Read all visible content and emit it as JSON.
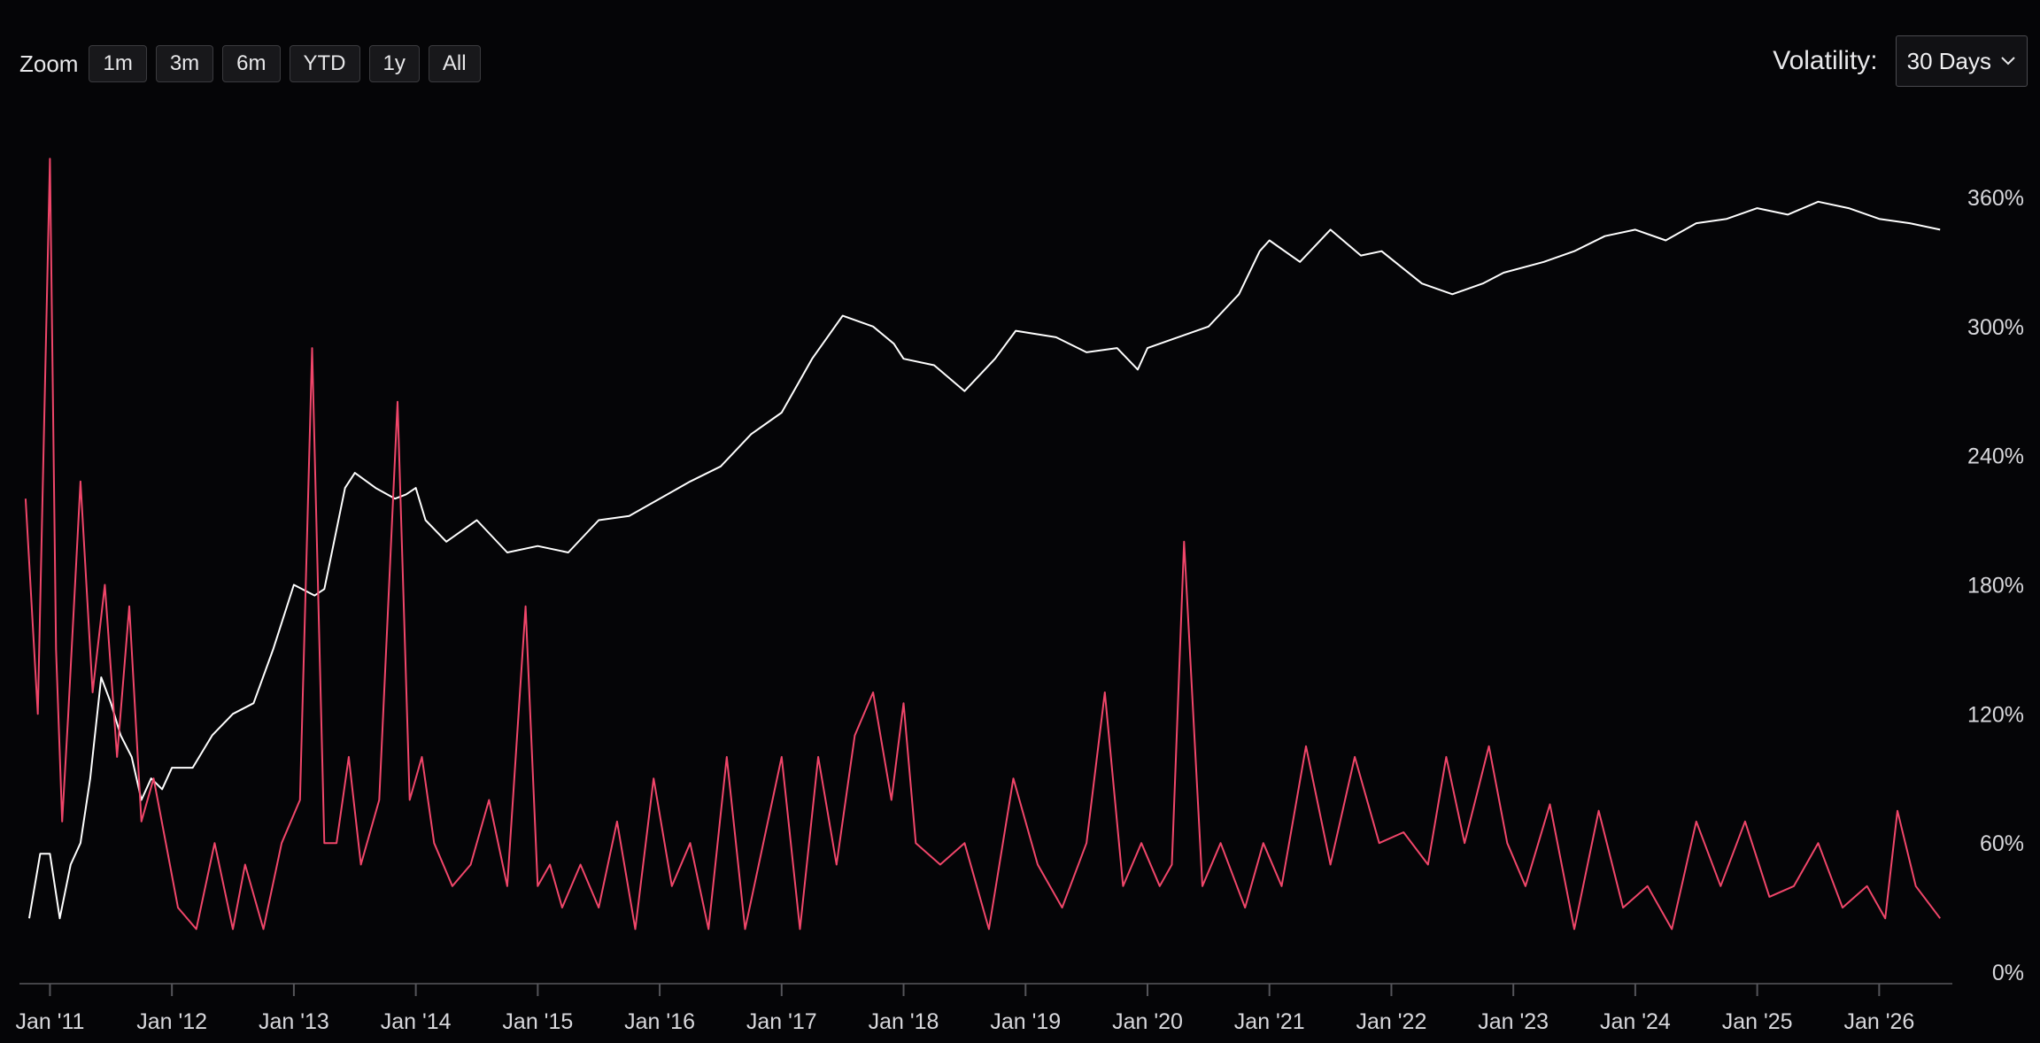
{
  "toolbar": {
    "zoom_label": "Zoom",
    "zoom_buttons": [
      "1m",
      "3m",
      "6m",
      "YTD",
      "1y",
      "All"
    ],
    "volatility_label": "Volatility:",
    "volatility_value": "30 Days",
    "dropdown_icon": "chevron-down-icon"
  },
  "chart_data": {
    "type": "line",
    "xlim": [
      2010.75,
      2026.6
    ],
    "ylim": [
      0,
      390
    ],
    "y_ticks": [
      0,
      60,
      120,
      180,
      240,
      300,
      360
    ],
    "y_tick_labels": [
      "0%",
      "60%",
      "120%",
      "180%",
      "240%",
      "300%",
      "360%"
    ],
    "x_ticks": [
      2011,
      2012,
      2013,
      2014,
      2015,
      2016,
      2017,
      2018,
      2019,
      2020,
      2021,
      2022,
      2023,
      2024,
      2025,
      2026
    ],
    "x_tick_labels": [
      "Jan '11",
      "Jan '12",
      "Jan '13",
      "Jan '14",
      "Jan '15",
      "Jan '16",
      "Jan '17",
      "Jan '18",
      "Jan '19",
      "Jan '20",
      "Jan '21",
      "Jan '22",
      "Jan '23",
      "Jan '24",
      "Jan '25",
      "Jan '26"
    ],
    "grid": false,
    "legend": "none",
    "series": [
      {
        "color": "#ffffff",
        "x": [
          2010.83,
          2010.92,
          2011.0,
          2011.08,
          2011.17,
          2011.25,
          2011.33,
          2011.42,
          2011.5,
          2011.58,
          2011.67,
          2011.75,
          2011.83,
          2011.92,
          2012.0,
          2012.17,
          2012.33,
          2012.5,
          2012.67,
          2012.83,
          2013.0,
          2013.17,
          2013.25,
          2013.33,
          2013.42,
          2013.5,
          2013.67,
          2013.83,
          2013.92,
          2014.0,
          2014.08,
          2014.25,
          2014.5,
          2014.75,
          2015.0,
          2015.25,
          2015.5,
          2015.75,
          2016.0,
          2016.25,
          2016.5,
          2016.75,
          2017.0,
          2017.25,
          2017.5,
          2017.75,
          2017.92,
          2018.0,
          2018.25,
          2018.5,
          2018.75,
          2018.92,
          2019.25,
          2019.5,
          2019.75,
          2019.92,
          2020.0,
          2020.25,
          2020.5,
          2020.75,
          2020.92,
          2021.0,
          2021.25,
          2021.5,
          2021.75,
          2021.92,
          2022.25,
          2022.5,
          2022.75,
          2022.92,
          2023.25,
          2023.5,
          2023.75,
          2024.0,
          2024.25,
          2024.5,
          2024.75,
          2025.0,
          2025.25,
          2025.5,
          2025.75,
          2026.0,
          2026.25,
          2026.5
        ],
        "values": [
          25,
          55,
          55,
          25,
          50,
          60,
          90,
          137,
          125,
          110,
          100,
          80,
          90,
          85,
          95,
          95,
          110,
          120,
          125,
          150,
          180,
          175,
          178,
          200,
          225,
          232,
          225,
          220,
          222,
          225,
          210,
          200,
          210,
          195,
          198,
          195,
          210,
          212,
          220,
          228,
          235,
          250,
          260,
          285,
          305,
          300,
          292,
          285,
          282,
          270,
          285,
          298,
          295,
          288,
          290,
          280,
          290,
          295,
          300,
          315,
          335,
          340,
          330,
          345,
          333,
          335,
          320,
          315,
          320,
          325,
          330,
          335,
          342,
          345,
          340,
          348,
          350,
          355,
          352,
          358,
          355,
          350,
          348,
          345
        ]
      },
      {
        "color": "#f0466a",
        "x": [
          2010.8,
          2010.9,
          2011.0,
          2011.05,
          2011.1,
          2011.15,
          2011.25,
          2011.35,
          2011.45,
          2011.55,
          2011.65,
          2011.75,
          2011.85,
          2011.95,
          2012.05,
          2012.2,
          2012.35,
          2012.5,
          2012.6,
          2012.75,
          2012.9,
          2013.05,
          2013.15,
          2013.25,
          2013.35,
          2013.45,
          2013.55,
          2013.7,
          2013.85,
          2013.95,
          2014.05,
          2014.15,
          2014.3,
          2014.45,
          2014.6,
          2014.75,
          2014.9,
          2015.0,
          2015.1,
          2015.2,
          2015.35,
          2015.5,
          2015.65,
          2015.8,
          2015.95,
          2016.1,
          2016.25,
          2016.4,
          2016.55,
          2016.7,
          2016.85,
          2017.0,
          2017.15,
          2017.3,
          2017.45,
          2017.6,
          2017.75,
          2017.9,
          2018.0,
          2018.1,
          2018.3,
          2018.5,
          2018.7,
          2018.9,
          2019.1,
          2019.3,
          2019.5,
          2019.65,
          2019.8,
          2019.95,
          2020.1,
          2020.2,
          2020.3,
          2020.45,
          2020.6,
          2020.8,
          2020.95,
          2021.1,
          2021.3,
          2021.5,
          2021.7,
          2021.9,
          2022.1,
          2022.3,
          2022.45,
          2022.6,
          2022.8,
          2022.95,
          2023.1,
          2023.3,
          2023.5,
          2023.7,
          2023.9,
          2024.1,
          2024.3,
          2024.5,
          2024.7,
          2024.9,
          2025.1,
          2025.3,
          2025.5,
          2025.7,
          2025.9,
          2026.05,
          2026.15,
          2026.3,
          2026.5
        ],
        "values": [
          220,
          120,
          378,
          150,
          70,
          120,
          228,
          130,
          180,
          100,
          170,
          70,
          90,
          60,
          30,
          20,
          60,
          20,
          50,
          20,
          60,
          80,
          290,
          60,
          60,
          100,
          50,
          80,
          265,
          80,
          100,
          60,
          40,
          50,
          80,
          40,
          170,
          40,
          50,
          30,
          50,
          30,
          70,
          20,
          90,
          40,
          60,
          20,
          100,
          20,
          60,
          100,
          20,
          100,
          50,
          110,
          130,
          80,
          125,
          60,
          50,
          60,
          20,
          90,
          50,
          30,
          60,
          130,
          40,
          60,
          40,
          50,
          200,
          40,
          60,
          30,
          60,
          40,
          105,
          50,
          100,
          60,
          65,
          50,
          100,
          60,
          105,
          60,
          40,
          78,
          20,
          75,
          30,
          40,
          20,
          70,
          40,
          70,
          35,
          40,
          60,
          30,
          40,
          25,
          75,
          40,
          25
        ]
      }
    ]
  }
}
